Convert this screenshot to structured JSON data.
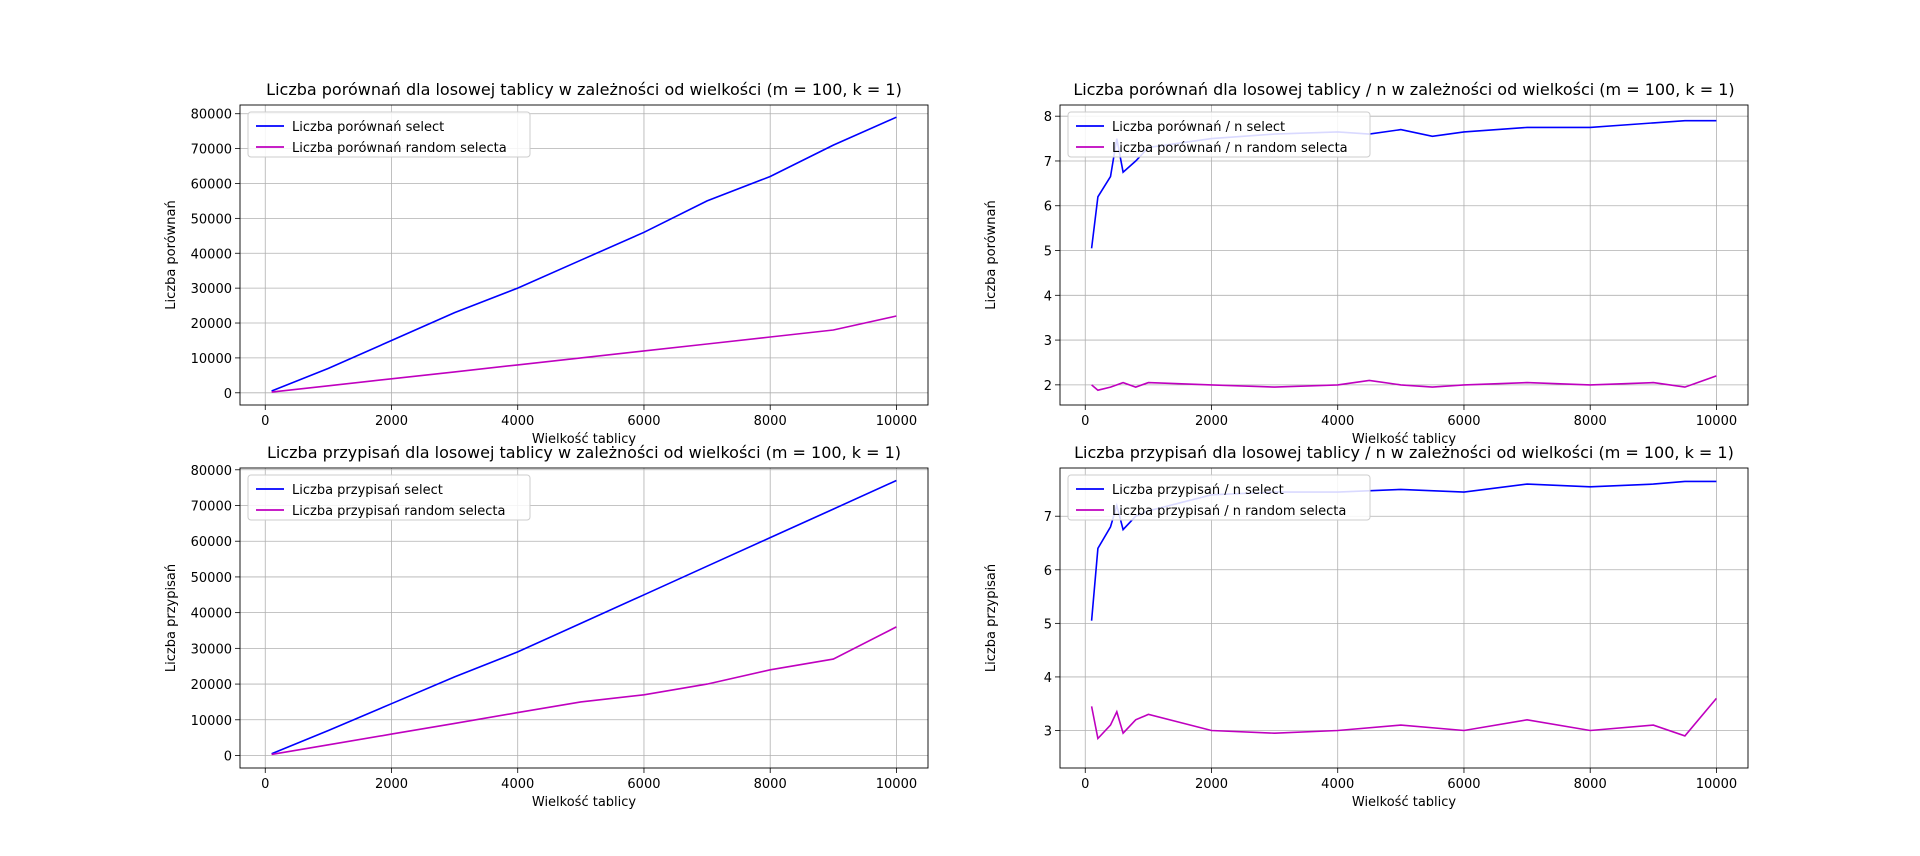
{
  "chart_data": [
    {
      "type": "line",
      "title": "Liczba porównań dla losowej tablicy w zależności od wielkości (m = 100, k = 1)",
      "xlabel": "Wielkość tablicy",
      "ylabel": "Liczba porównań",
      "xlim": [
        -400,
        10500
      ],
      "ylim": [
        -3500,
        82500
      ],
      "xticks": [
        0,
        2000,
        4000,
        6000,
        8000,
        10000
      ],
      "yticks": [
        0,
        10000,
        20000,
        30000,
        40000,
        50000,
        60000,
        70000,
        80000
      ],
      "xtick_labels": [
        "0",
        "2000",
        "4000",
        "6000",
        "8000",
        "10000"
      ],
      "ytick_labels": [
        "0",
        "10000",
        "20000",
        "30000",
        "40000",
        "50000",
        "60000",
        "70000",
        "80000"
      ],
      "grid": true,
      "legend_position": "top-left",
      "x": [
        100,
        1000,
        2000,
        3000,
        4000,
        5000,
        6000,
        7000,
        8000,
        9000,
        10000
      ],
      "series": [
        {
          "name": "Liczba porównań select",
          "color": "#0000ff",
          "values": [
            500,
            7000,
            15000,
            23000,
            30000,
            38000,
            46000,
            55000,
            62000,
            71000,
            79000
          ]
        },
        {
          "name": "Liczba porównań random selecta",
          "color": "#bf00bf",
          "values": [
            200,
            2000,
            4000,
            6000,
            8000,
            10000,
            12000,
            14000,
            16000,
            18000,
            22000
          ]
        }
      ]
    },
    {
      "type": "line",
      "title": "Liczba porównań dla losowej tablicy / n w zależności od wielkości (m = 100, k = 1)",
      "xlabel": "Wielkość tablicy",
      "ylabel": "Liczba porównań",
      "xlim": [
        -400,
        10500
      ],
      "ylim": [
        1.55,
        8.25
      ],
      "xticks": [
        0,
        2000,
        4000,
        6000,
        8000,
        10000
      ],
      "yticks": [
        2,
        3,
        4,
        5,
        6,
        7,
        8
      ],
      "xtick_labels": [
        "0",
        "2000",
        "4000",
        "6000",
        "8000",
        "10000"
      ],
      "ytick_labels": [
        "2",
        "3",
        "4",
        "5",
        "6",
        "7",
        "8"
      ],
      "grid": true,
      "legend_position": "top-left",
      "x": [
        100,
        200,
        400,
        500,
        600,
        800,
        1000,
        2000,
        3000,
        4000,
        4500,
        5000,
        5500,
        6000,
        7000,
        8000,
        9000,
        9500,
        10000
      ],
      "series": [
        {
          "name": "Liczba porównań / n select",
          "color": "#0000ff",
          "values": [
            5.05,
            6.2,
            6.65,
            7.5,
            6.75,
            7.0,
            7.3,
            7.5,
            7.6,
            7.65,
            7.6,
            7.7,
            7.55,
            7.65,
            7.75,
            7.75,
            7.85,
            7.9,
            7.9
          ]
        },
        {
          "name": "Liczba porównań / n random selecta",
          "color": "#bf00bf",
          "values": [
            2.0,
            1.88,
            1.95,
            2.0,
            2.05,
            1.95,
            2.05,
            2.0,
            1.95,
            2.0,
            2.1,
            2.0,
            1.95,
            2.0,
            2.05,
            2.0,
            2.05,
            1.95,
            2.2
          ]
        }
      ]
    },
    {
      "type": "line",
      "title": "Liczba przypisań dla losowej tablicy w zależności od wielkości (m = 100, k = 1)",
      "xlabel": "Wielkość tablicy",
      "ylabel": "Liczba przypisań",
      "xlim": [
        -400,
        10500
      ],
      "ylim": [
        -3500,
        80500
      ],
      "xticks": [
        0,
        2000,
        4000,
        6000,
        8000,
        10000
      ],
      "yticks": [
        0,
        10000,
        20000,
        30000,
        40000,
        50000,
        60000,
        70000,
        80000
      ],
      "xtick_labels": [
        "0",
        "2000",
        "4000",
        "6000",
        "8000",
        "10000"
      ],
      "ytick_labels": [
        "0",
        "10000",
        "20000",
        "30000",
        "40000",
        "50000",
        "60000",
        "70000",
        "80000"
      ],
      "grid": true,
      "legend_position": "top-left",
      "x": [
        100,
        1000,
        2000,
        3000,
        4000,
        5000,
        6000,
        7000,
        8000,
        9000,
        10000
      ],
      "series": [
        {
          "name": "Liczba przypisań select",
          "color": "#0000ff",
          "values": [
            500,
            7000,
            14500,
            22000,
            29000,
            37000,
            45000,
            53000,
            61000,
            69000,
            77000
          ]
        },
        {
          "name": "Liczba przypisań random selecta",
          "color": "#bf00bf",
          "values": [
            300,
            3000,
            6000,
            9000,
            12000,
            15000,
            17000,
            20000,
            24000,
            27000,
            36000
          ]
        }
      ]
    },
    {
      "type": "line",
      "title": "Liczba przypisań dla losowej tablicy / n w zależności od wielkości (m = 100, k = 1)",
      "xlabel": "Wielkość tablicy",
      "ylabel": "Liczba przypisań",
      "xlim": [
        -400,
        10500
      ],
      "ylim": [
        2.3,
        7.9
      ],
      "xticks": [
        0,
        2000,
        4000,
        6000,
        8000,
        10000
      ],
      "yticks": [
        3,
        4,
        5,
        6,
        7
      ],
      "xtick_labels": [
        "0",
        "2000",
        "4000",
        "6000",
        "8000",
        "10000"
      ],
      "ytick_labels": [
        "3",
        "4",
        "5",
        "6",
        "7"
      ],
      "grid": true,
      "legend_position": "top-left",
      "x": [
        100,
        200,
        400,
        500,
        600,
        800,
        1000,
        2000,
        3000,
        4000,
        5000,
        6000,
        7000,
        8000,
        9000,
        9500,
        10000
      ],
      "series": [
        {
          "name": "Liczba przypisań / n select",
          "color": "#0000ff",
          "values": [
            5.05,
            6.4,
            6.8,
            7.2,
            6.75,
            7.0,
            7.1,
            7.4,
            7.45,
            7.45,
            7.5,
            7.45,
            7.6,
            7.55,
            7.6,
            7.65,
            7.65
          ]
        },
        {
          "name": "Liczba przypisań / n random selecta",
          "color": "#bf00bf",
          "values": [
            3.45,
            2.85,
            3.1,
            3.35,
            2.95,
            3.2,
            3.3,
            3.0,
            2.95,
            3.0,
            3.1,
            3.0,
            3.2,
            3.0,
            3.1,
            2.9,
            3.6
          ]
        }
      ]
    }
  ]
}
